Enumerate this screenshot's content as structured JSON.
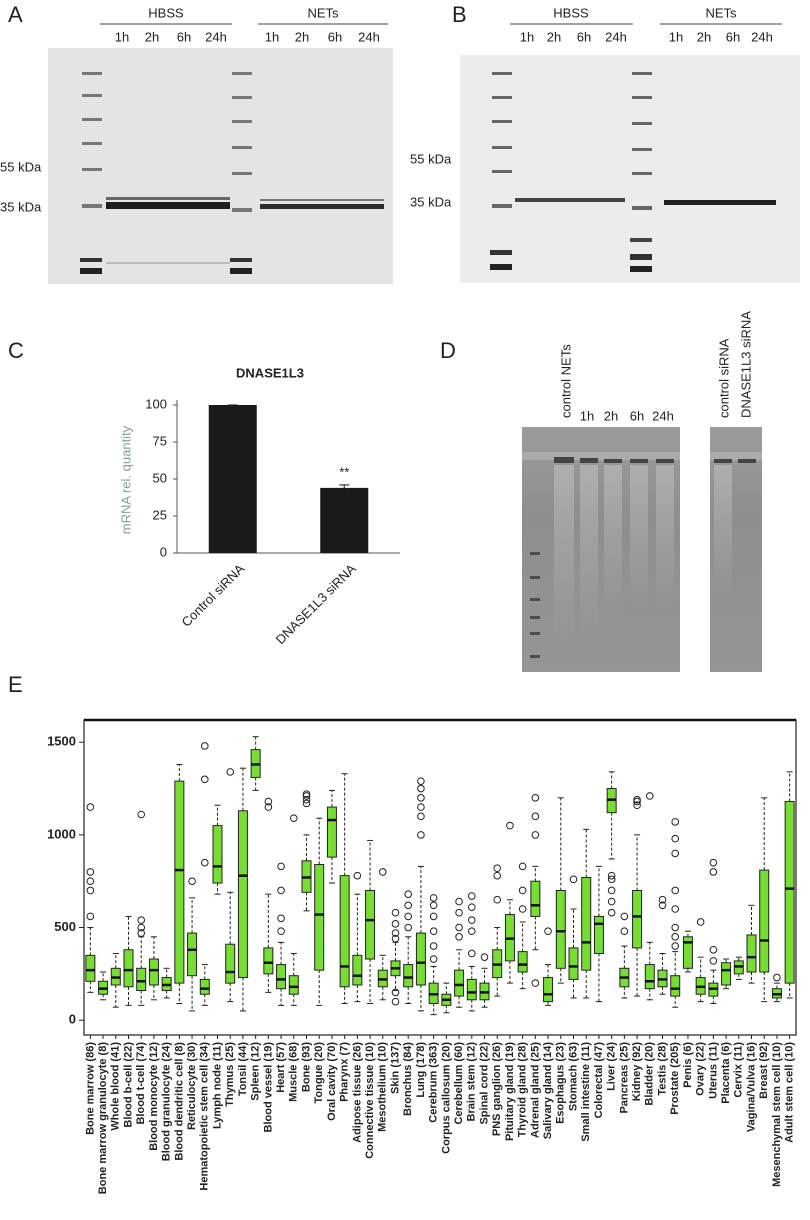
{
  "panels": {
    "A": {
      "label": "A",
      "groups": [
        "HBSS",
        "NETs"
      ],
      "lanes": [
        "1h",
        "2h",
        "6h",
        "24h",
        "1h",
        "2h",
        "6h",
        "24h"
      ],
      "markers": [
        "55 kDa",
        "35 kDa"
      ]
    },
    "B": {
      "label": "B",
      "groups": [
        "HBSS",
        "NETs"
      ],
      "lanes": [
        "1h",
        "2h",
        "6h",
        "24h",
        "1h",
        "2h",
        "6h",
        "24h"
      ],
      "markers": [
        "55 kDa",
        "35 kDa"
      ]
    },
    "C": {
      "label": "C"
    },
    "D": {
      "label": "D",
      "lanes": [
        "control NETs",
        "1h",
        "2h",
        "6h",
        "24h",
        "control siRNA",
        "DNASE1L3 siRNA"
      ]
    },
    "E": {
      "label": "E"
    }
  },
  "chart_data": [
    {
      "type": "bar",
      "title": "DNASE1L3",
      "y_label": "mRNA rel. quantity",
      "categories": [
        "Control siRNA",
        "DNASE1L3 siRNA"
      ],
      "values": [
        100,
        44
      ],
      "errors": [
        0,
        2
      ],
      "significance": "**",
      "color": "#1a1a1a",
      "ylim": [
        0,
        100
      ],
      "yticks": [
        0,
        25,
        50,
        75,
        100
      ]
    },
    {
      "type": "box",
      "color": "#77dd33",
      "ylim": [
        -80,
        1620
      ],
      "yticks": [
        0,
        500,
        1000,
        1500
      ],
      "categories": [
        "Bone marrow (86)",
        "Bone marrow granulocyte (8)",
        "Whole blood (41)",
        "Blood b-cell (22)",
        "Blood t-cell (74)",
        "Blood monocyte (12)",
        "Blood granulocyte (24)",
        "Blood dendritic cell (8)",
        "Reticulocyte (30)",
        "Hematopoietic stem cell (34)",
        "Lymph node (11)",
        "Thymus (25)",
        "Tonsil (44)",
        "Spleen (12)",
        "Blood vessel (19)",
        "Heart (57)",
        "Muscle (68)",
        "Bone (93)",
        "Tongue (20)",
        "Oral cavity (70)",
        "Pharynx (7)",
        "Adipose tissue (26)",
        "Connective tissue (10)",
        "Mesothelium (10)",
        "Skin (137)",
        "Bronchus (84)",
        "Lung (178)",
        "Cerebrum (363)",
        "Corpus callosum (20)",
        "Cerebellum (60)",
        "Brain stem (12)",
        "Spinal cord (22)",
        "PNS ganglion (26)",
        "Pituitary gland (19)",
        "Thyroid gland (28)",
        "Adrenal gland (25)",
        "Salivary gland (14)",
        "Esophagus (23)",
        "Stomach (63)",
        "Small intestine (11)",
        "Colorectal (47)",
        "Liver (24)",
        "Pancreas (25)",
        "Kidney (92)",
        "Bladder (20)",
        "Testis (28)",
        "Prostate (205)",
        "Penis (6)",
        "Ovary (22)",
        "Uterus (11)",
        "Placenta (6)",
        "Cervix (11)",
        "Vagina/Vulva (16)",
        "Breast (92)",
        "Mesenchymal stem cell (10)",
        "Adult stem cell (10)"
      ],
      "low": [
        150,
        110,
        70,
        80,
        80,
        110,
        120,
        90,
        50,
        80,
        680,
        100,
        50,
        1240,
        150,
        80,
        80,
        590,
        80,
        740,
        90,
        100,
        90,
        110,
        160,
        90,
        50,
        30,
        40,
        70,
        50,
        70,
        130,
        200,
        170,
        380,
        80,
        200,
        120,
        120,
        100,
        870,
        120,
        130,
        110,
        140,
        70,
        260,
        100,
        90,
        170,
        220,
        200,
        100,
        100,
        120
      ],
      "q1": [
        210,
        140,
        190,
        180,
        160,
        190,
        160,
        200,
        240,
        140,
        740,
        200,
        230,
        1310,
        250,
        170,
        140,
        690,
        270,
        880,
        180,
        190,
        330,
        180,
        240,
        180,
        190,
        90,
        80,
        130,
        110,
        110,
        230,
        320,
        260,
        560,
        100,
        280,
        220,
        270,
        360,
        1120,
        180,
        390,
        170,
        180,
        130,
        280,
        140,
        130,
        190,
        250,
        260,
        260,
        120,
        200
      ],
      "median": [
        270,
        170,
        230,
        270,
        210,
        270,
        190,
        810,
        380,
        170,
        830,
        260,
        780,
        1380,
        310,
        220,
        180,
        770,
        570,
        1080,
        290,
        240,
        540,
        220,
        280,
        230,
        310,
        140,
        110,
        190,
        150,
        150,
        300,
        440,
        300,
        620,
        140,
        480,
        290,
        420,
        520,
        1190,
        230,
        560,
        210,
        220,
        170,
        420,
        180,
        170,
        270,
        290,
        340,
        430,
        140,
        710
      ],
      "q3": [
        350,
        210,
        280,
        380,
        280,
        330,
        230,
        1290,
        470,
        220,
        1050,
        410,
        1130,
        1460,
        390,
        300,
        240,
        860,
        840,
        1150,
        780,
        350,
        700,
        270,
        320,
        300,
        470,
        200,
        140,
        270,
        220,
        200,
        380,
        570,
        370,
        750,
        230,
        700,
        390,
        770,
        560,
        1250,
        280,
        700,
        300,
        270,
        240,
        450,
        230,
        200,
        310,
        320,
        460,
        810,
        170,
        1180
      ],
      "high": [
        500,
        260,
        360,
        560,
        450,
        450,
        280,
        1380,
        660,
        300,
        1160,
        690,
        1360,
        1530,
        680,
        420,
        360,
        1000,
        1090,
        1240,
        1330,
        680,
        970,
        350,
        420,
        450,
        830,
        290,
        200,
        380,
        290,
        280,
        500,
        650,
        530,
        830,
        300,
        1200,
        600,
        1030,
        830,
        1340,
        400,
        1000,
        420,
        360,
        370,
        480,
        340,
        270,
        330,
        340,
        620,
        1200,
        200,
        1340
      ],
      "outliers": [
        [
          560,
          700,
          750,
          800,
          1150
        ],
        [],
        [],
        [],
        [
          470,
          500,
          540,
          1110
        ],
        [],
        [],
        [],
        [
          750
        ],
        [
          850,
          1300,
          1480
        ],
        [],
        [
          1340
        ],
        [],
        [],
        [
          1150,
          1180
        ],
        [
          480,
          550,
          700,
          830
        ],
        [
          1090
        ],
        [
          1170,
          1190,
          1210,
          1220
        ],
        [],
        [],
        [],
        [
          780
        ],
        [],
        [
          800
        ],
        [
          100,
          150,
          440,
          470,
          520,
          580
        ],
        [
          500,
          560,
          620,
          680
        ],
        [
          1000,
          1100,
          1150,
          1200,
          1250,
          1290
        ],
        [
          330,
          400,
          480,
          560,
          620,
          660
        ],
        [],
        [
          450,
          500,
          580,
          640
        ],
        [
          360,
          480,
          540,
          610,
          670
        ],
        [
          340
        ],
        [
          650,
          780,
          820
        ],
        [
          1050
        ],
        [
          600,
          700,
          830
        ],
        [
          200,
          1000,
          1100,
          1200
        ],
        [
          480
        ],
        [],
        [
          760
        ],
        [],
        [],
        [
          580,
          640,
          700,
          760,
          780
        ],
        [
          480,
          560
        ],
        [
          1160,
          1180,
          1190
        ],
        [
          1210
        ],
        [
          620,
          650
        ],
        [
          400,
          450,
          500,
          600,
          700,
          900,
          980,
          1070
        ],
        [],
        [
          530
        ],
        [
          320,
          380,
          800,
          850
        ],
        [],
        [],
        [],
        [],
        [
          230
        ],
        []
      ]
    }
  ]
}
